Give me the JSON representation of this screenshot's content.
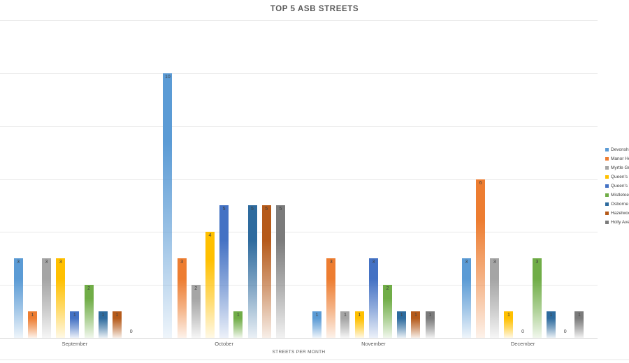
{
  "chart_data": {
    "type": "bar",
    "title": "TOP 5 ASB STREETS",
    "xlabel": "STREETS PER MONTH",
    "ylabel": "",
    "categories": [
      "September",
      "October",
      "November",
      "December"
    ],
    "series": [
      {
        "name": "Devonshir",
        "color": "#5B9BD5",
        "values": [
          3,
          10,
          1,
          3
        ]
      },
      {
        "name": "Manor Ho",
        "color": "#ED7D31",
        "values": [
          1,
          3,
          3,
          6
        ]
      },
      {
        "name": "Myrtle Gr",
        "color": "#A5A5A5",
        "values": [
          3,
          2,
          1,
          3
        ]
      },
      {
        "name": "Queen's F",
        "color": "#FFC000",
        "values": [
          3,
          4,
          1,
          1
        ]
      },
      {
        "name": "Queen's T",
        "color": "#4472C4",
        "values": [
          1,
          5,
          3,
          0
        ]
      },
      {
        "name": "Mistletoe",
        "color": "#70AD47",
        "values": [
          2,
          1,
          2,
          3
        ]
      },
      {
        "name": "Osborne A",
        "color": "#2E6B9E",
        "values": [
          1,
          5,
          1,
          1
        ]
      },
      {
        "name": "Hazelwoo",
        "color": "#B55A1A",
        "values": [
          1,
          5,
          1,
          0
        ]
      },
      {
        "name": "Holly Ave",
        "color": "#7B7B7B",
        "values": [
          0,
          5,
          1,
          1
        ]
      }
    ],
    "ylim": [
      0,
      12
    ],
    "gridline_step": 2,
    "grid": true,
    "legend_position": "right",
    "data_labels": true,
    "text_color": "#595959",
    "label_color": "#404040",
    "gridline_color": "#e9e9e9"
  }
}
